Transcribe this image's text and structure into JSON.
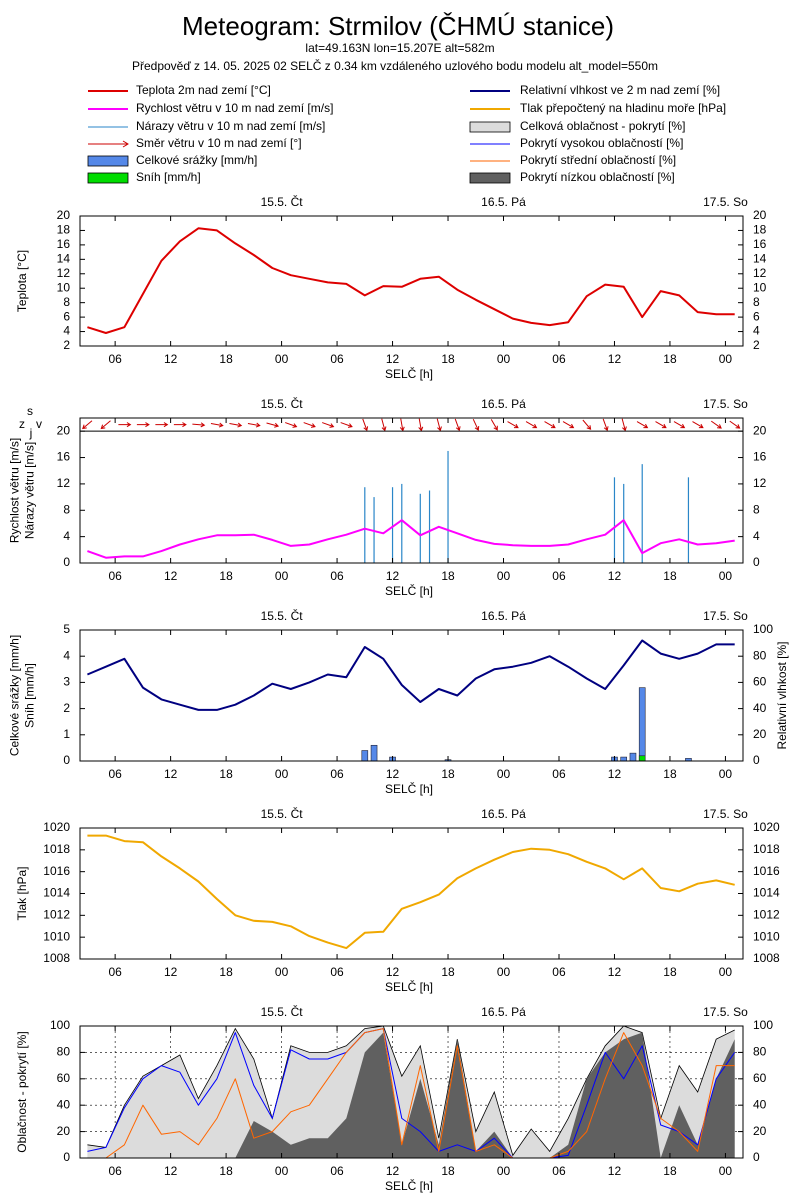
{
  "header": {
    "title": "Meteogram: Strmilov (ČHMÚ stanice)",
    "location": "lat=49.163N lon=15.207E alt=582m",
    "forecast": "Předpověď z 14. 05. 2025 02 SELČ z 0.34 km vzdáleného uzlového bodu modelu alt_model=550m"
  },
  "time": {
    "xlabel": "SELČ [h]",
    "xlim": [
      2.2,
      73.9
    ],
    "xticks": [
      {
        "value": 6,
        "label": "06"
      },
      12,
      18,
      {
        "value": 24,
        "label": "00"
      },
      {
        "value": 30,
        "label": "06"
      },
      {
        "value": 36,
        "label": "12"
      },
      {
        "value": 42,
        "label": "18"
      },
      {
        "value": 48,
        "label": "00"
      },
      {
        "value": 54,
        "label": "06"
      },
      {
        "value": 60,
        "label": "12"
      },
      {
        "value": 66,
        "label": "18"
      },
      {
        "value": 72,
        "label": "00"
      }
    ],
    "days": [
      {
        "value": 24,
        "label": "15.5. Čt"
      },
      {
        "value": 48,
        "label": "16.5. Pá"
      },
      {
        "value": 72,
        "label": "17.5. So"
      }
    ],
    "x": [
      3,
      5,
      7,
      9,
      11,
      13,
      15,
      17,
      19,
      21,
      23,
      25,
      27,
      29,
      31,
      33,
      35,
      37,
      39,
      41,
      43,
      45,
      47,
      49,
      51,
      53,
      55,
      57,
      59,
      61,
      63,
      65,
      67,
      69,
      71,
      73
    ]
  },
  "chart_data": [
    {
      "type": "line",
      "ylabel": [
        "Teplota [°C]"
      ],
      "ylim": [
        2,
        20
      ],
      "yticks": [
        2,
        4,
        6,
        8,
        10,
        12,
        14,
        16,
        18,
        20
      ],
      "grid": false,
      "series": [
        {
          "name": "Teplota 2m nad zemí [°C]",
          "kind": "line",
          "color": "#dd0000",
          "values": [
            4.6,
            3.8,
            4.6,
            9.2,
            13.8,
            16.5,
            18.3,
            18.0,
            16.2,
            14.6,
            12.8,
            11.8,
            11.3,
            10.8,
            10.6,
            9.0,
            10.3,
            10.2,
            11.3,
            11.6,
            9.8,
            8.4,
            7.1,
            5.8,
            5.2,
            4.9,
            5.3,
            8.9,
            10.5,
            10.2,
            6.0,
            9.6,
            9.0,
            6.7,
            6.4,
            6.4
          ]
        }
      ]
    },
    {
      "type": "combo",
      "ylabel": [
        "Rychlost větru [m/s]",
        "Nárazy větru [m/s]"
      ],
      "ylim": [
        0,
        22
      ],
      "yticks": [
        0,
        4,
        8,
        12,
        16,
        20
      ],
      "grid": false,
      "compass": [
        "s",
        "j",
        "z",
        "v"
      ],
      "series": [
        {
          "name": "Rychlost větru v 10 m nad zemí [m/s]",
          "kind": "line",
          "color": "#ff00ff",
          "values": [
            1.8,
            0.8,
            1.0,
            1.0,
            1.8,
            2.8,
            3.6,
            4.2,
            4.2,
            4.3,
            3.5,
            2.6,
            2.8,
            3.6,
            4.3,
            5.2,
            4.5,
            6.5,
            4.2,
            5.5,
            4.5,
            3.5,
            2.9,
            2.7,
            2.6,
            2.6,
            2.8,
            3.6,
            4.3,
            6.5,
            1.5,
            3.0,
            3.6,
            2.8,
            3.0,
            3.4
          ]
        },
        {
          "name": "Nárazy větru v 10 m nad zemí [m/s]",
          "kind": "spike",
          "color": "#2a86c8",
          "x": [
            33,
            34,
            36,
            37,
            39,
            40,
            42,
            60,
            61,
            63,
            68
          ],
          "values": [
            11.5,
            10,
            11.5,
            12,
            10.5,
            11,
            17,
            13,
            12,
            15,
            13
          ]
        },
        {
          "name": "Směr větru v 10 m nad zemí [°]",
          "kind": "arrow",
          "color": "#cc0000",
          "values": [
            50,
            50,
            270,
            270,
            270,
            270,
            275,
            280,
            280,
            280,
            285,
            290,
            290,
            290,
            290,
            340,
            345,
            350,
            350,
            345,
            340,
            335,
            330,
            300,
            300,
            300,
            300,
            320,
            340,
            345,
            300,
            300,
            300,
            300,
            305,
            305
          ]
        }
      ]
    },
    {
      "type": "combo",
      "ylabel": [
        "Celkové srážky [mm/h]",
        "Sníh [mm/h]"
      ],
      "y2label": "Relativní vlhkost [%]",
      "ylim": [
        0,
        5
      ],
      "yticks": [
        0,
        1,
        2,
        3,
        4,
        5
      ],
      "y2lim": [
        0,
        100
      ],
      "y2ticks": [
        0,
        20,
        40,
        60,
        80,
        100
      ],
      "grid": false,
      "series": [
        {
          "name": "Celkové srážky [mm/h]",
          "kind": "bar",
          "color": "#5588e8",
          "x": [
            33,
            34,
            36,
            42,
            60,
            61,
            62,
            63,
            68
          ],
          "values": [
            0.4,
            0.6,
            0.15,
            0.05,
            0.15,
            0.15,
            0.3,
            2.8,
            0.1
          ]
        },
        {
          "name": "Sníh [mm/h]",
          "kind": "bar",
          "color": "#00dd00",
          "x": [
            63
          ],
          "values": [
            0.2
          ]
        },
        {
          "name": "Relativní vlhkost ve 2 m nad zemí [%]",
          "kind": "line",
          "axis": "y2",
          "color": "#000080",
          "values": [
            66,
            72,
            78,
            56,
            47,
            43,
            39,
            39,
            43,
            50,
            59,
            55,
            60,
            66,
            64,
            87,
            78,
            58,
            45,
            55,
            50,
            63,
            70,
            72,
            75,
            80,
            72,
            63,
            55,
            73,
            92,
            82,
            78,
            82,
            89,
            89
          ]
        }
      ]
    },
    {
      "type": "line",
      "ylabel": [
        "Tlak [hPa]"
      ],
      "ylim": [
        1008,
        1020
      ],
      "yticks": [
        1008,
        1010,
        1012,
        1014,
        1016,
        1018,
        1020
      ],
      "grid": false,
      "series": [
        {
          "name": "Tlak přepočtený na hladinu moře [hPa]",
          "kind": "line",
          "color": "#f0a800",
          "values": [
            1019.3,
            1019.3,
            1018.8,
            1018.7,
            1017.4,
            1016.3,
            1015.1,
            1013.5,
            1012.0,
            1011.5,
            1011.4,
            1011.0,
            1010.1,
            1009.5,
            1009.0,
            1010.4,
            1010.5,
            1012.6,
            1013.2,
            1013.9,
            1015.4,
            1016.3,
            1017.1,
            1017.8,
            1018.1,
            1018.0,
            1017.6,
            1016.9,
            1016.3,
            1015.3,
            1016.3,
            1014.5,
            1014.2,
            1014.9,
            1015.2,
            1014.8
          ]
        }
      ]
    },
    {
      "type": "combo",
      "ylabel": [
        "Oblačnost - pokrytí [%]"
      ],
      "ylim": [
        0,
        100
      ],
      "yticks": [
        0,
        20,
        40,
        60,
        80,
        100
      ],
      "grid": true,
      "series": [
        {
          "name": "Celková oblačnost - pokrytí [%]",
          "kind": "area",
          "color": "#dcdcdc",
          "edge": "#000000",
          "values": [
            10,
            8,
            40,
            62,
            70,
            78,
            45,
            70,
            98,
            75,
            30,
            85,
            80,
            80,
            85,
            98,
            100,
            62,
            85,
            15,
            90,
            20,
            50,
            2,
            22,
            5,
            30,
            60,
            85,
            100,
            95,
            30,
            70,
            50,
            90,
            97
          ]
        },
        {
          "name": "Pokrytí vysokou oblačností [%]",
          "kind": "line",
          "color": "#0000ff",
          "values": [
            5,
            8,
            38,
            60,
            70,
            65,
            40,
            60,
            95,
            55,
            30,
            82,
            75,
            75,
            80,
            95,
            98,
            30,
            20,
            5,
            10,
            5,
            15,
            0,
            0,
            0,
            2,
            40,
            80,
            60,
            85,
            25,
            20,
            10,
            60,
            80
          ]
        },
        {
          "name": "Pokrytí střední oblačností [%]",
          "kind": "line",
          "color": "#ff6600",
          "values": [
            0,
            0,
            10,
            40,
            18,
            20,
            10,
            30,
            60,
            15,
            20,
            35,
            40,
            60,
            80,
            95,
            98,
            10,
            70,
            5,
            85,
            5,
            10,
            0,
            0,
            0,
            5,
            20,
            60,
            95,
            70,
            30,
            20,
            5,
            70,
            70
          ]
        },
        {
          "name": "Pokrytí nízkou oblačností [%]",
          "kind": "area",
          "color": "#606060",
          "values": [
            0,
            0,
            0,
            0,
            0,
            0,
            0,
            0,
            0,
            28,
            20,
            10,
            15,
            15,
            30,
            80,
            95,
            10,
            60,
            10,
            90,
            5,
            20,
            0,
            0,
            0,
            10,
            60,
            80,
            90,
            95,
            0,
            40,
            10,
            60,
            90
          ]
        }
      ]
    }
  ]
}
